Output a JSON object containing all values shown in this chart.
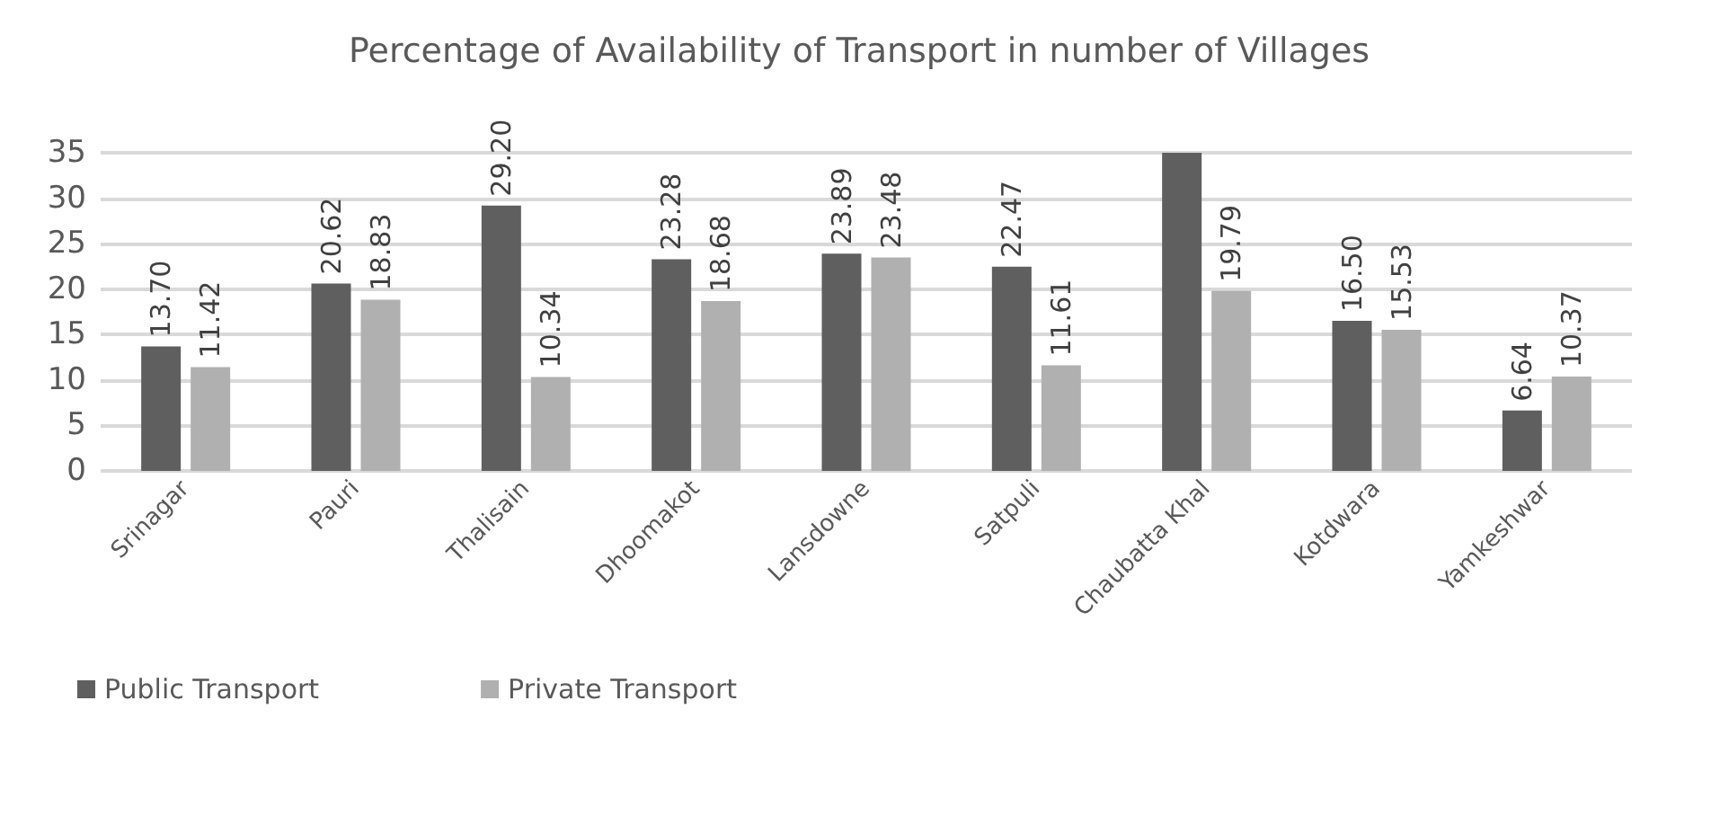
{
  "chart_data": {
    "type": "bar",
    "title": "Percentage of Availability of Transport in number of Villages",
    "categories": [
      "Srinagar",
      "Pauri",
      "Thalisain",
      "Dhoomakot",
      "Lansdowne",
      "Satpuli",
      "Chaubatta Khal",
      "Kotdwara",
      "Yamkeshwar"
    ],
    "series": [
      {
        "name": "Public Transport",
        "color": "#5f5f5f",
        "values": [
          13.7,
          20.62,
          29.2,
          23.28,
          23.89,
          22.47,
          35,
          16.5,
          6.64
        ],
        "value_labels": [
          "13.70",
          "20.62",
          "29.20",
          "23.28",
          "23.89",
          "22.47",
          null,
          "16.50",
          "6.64"
        ]
      },
      {
        "name": "Private Transport",
        "color": "#b0b0b0",
        "values": [
          11.42,
          18.83,
          10.34,
          18.68,
          23.48,
          11.61,
          19.79,
          15.53,
          10.37
        ],
        "value_labels": [
          "11.42",
          "18.83",
          "10.34",
          "18.68",
          "23.48",
          "11.61",
          "19.79",
          "15.53",
          "10.37"
        ]
      }
    ],
    "ylim": [
      0,
      35
    ],
    "yticks": [
      0,
      5,
      10,
      15,
      20,
      25,
      30,
      35
    ],
    "grid": "y",
    "legend": "bottom left"
  }
}
